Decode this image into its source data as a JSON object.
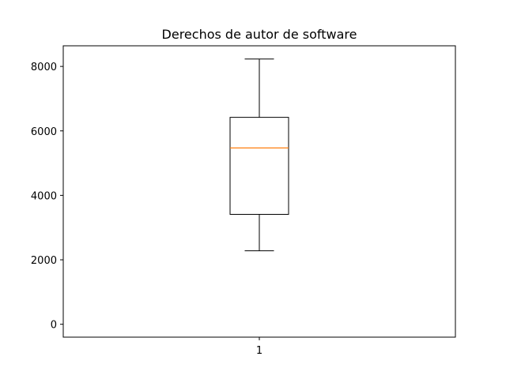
{
  "chart_data": {
    "type": "box",
    "title": "Derechos de autor de software",
    "xlabel": "",
    "ylabel": "",
    "categories": [
      "1"
    ],
    "boxes": [
      {
        "category": "1",
        "whisker_low": 2280,
        "q1": 3410,
        "median": 5470,
        "q3": 6420,
        "whisker_high": 8230
      }
    ],
    "ylim": [
      -400,
      8640
    ],
    "yticks": [
      0,
      2000,
      4000,
      6000,
      8000
    ],
    "ytick_labels": [
      "0",
      "2000",
      "4000",
      "6000",
      "8000"
    ],
    "grid": false,
    "colors": {
      "box": "#000000",
      "median": "#ff7f0e",
      "axes": "#000000"
    }
  }
}
